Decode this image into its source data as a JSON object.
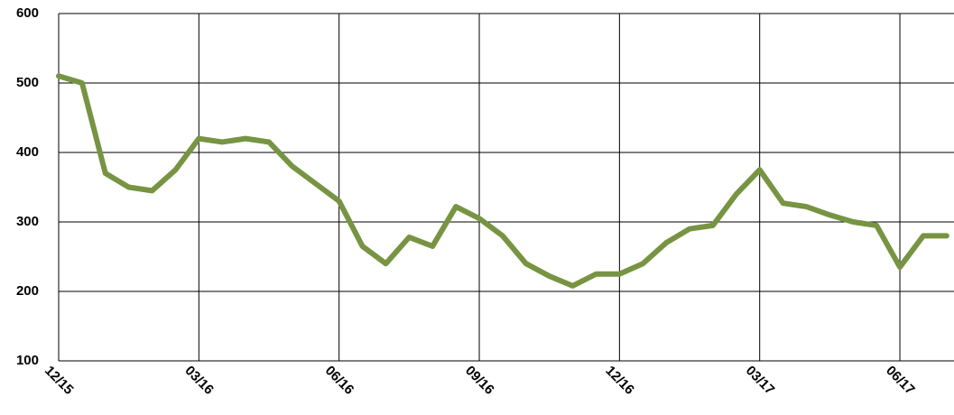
{
  "chart_data": {
    "type": "line",
    "categories": [
      "12/15",
      null,
      null,
      null,
      null,
      null,
      "03/16",
      null,
      null,
      null,
      null,
      null,
      "06/16",
      null,
      null,
      null,
      null,
      null,
      "09/16",
      null,
      null,
      null,
      null,
      null,
      "12/16",
      null,
      null,
      null,
      null,
      null,
      "03/17",
      null,
      null,
      null,
      null,
      null,
      "06/17",
      null,
      null
    ],
    "series": [
      {
        "color": "#779442",
        "values": [
          510,
          500,
          370,
          350,
          345,
          375,
          420,
          415,
          420,
          415,
          380,
          355,
          330,
          265,
          240,
          278,
          265,
          322,
          305,
          280,
          240,
          222,
          208,
          225,
          225,
          240,
          270,
          290,
          295,
          340,
          375,
          327,
          322,
          310,
          300,
          295,
          235,
          280,
          280
        ]
      }
    ],
    "ylim": [
      100,
      600
    ],
    "yticks": [
      100,
      200,
      300,
      400,
      500,
      600
    ],
    "grid": true
  }
}
